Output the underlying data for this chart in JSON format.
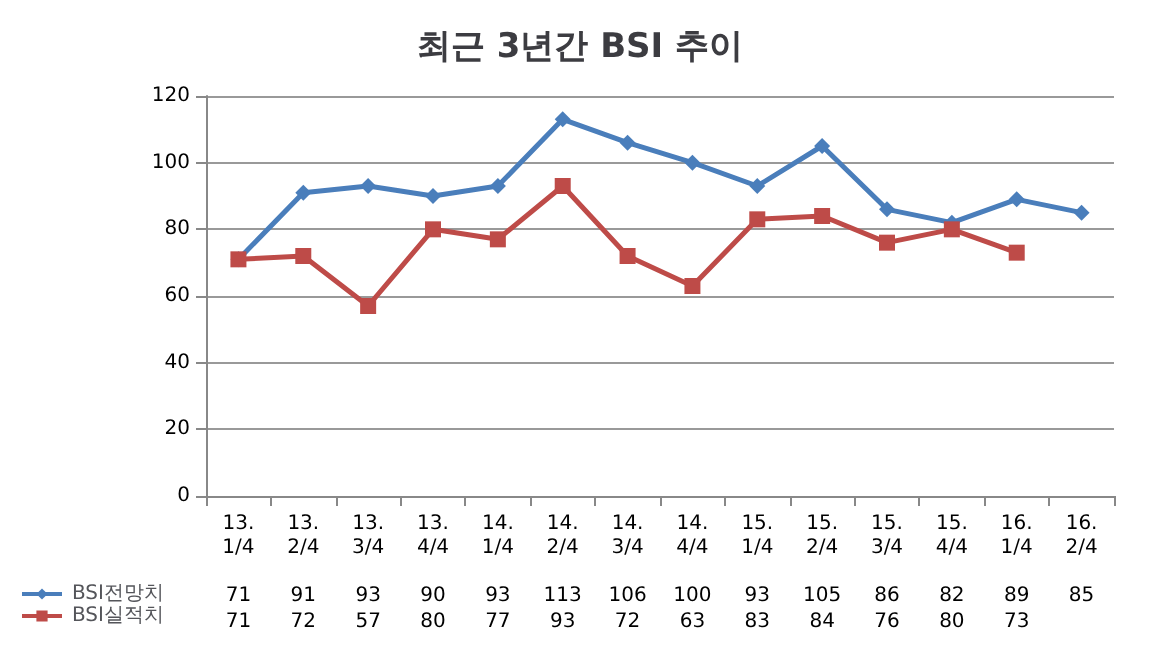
{
  "chart_data": {
    "type": "line",
    "title": "최근 3년간 BSI 추이",
    "categories": [
      "13.\n1/4",
      "13.\n2/4",
      "13.\n3/4",
      "13.\n4/4",
      "14.\n1/4",
      "14.\n2/4",
      "14.\n3/4",
      "14.\n4/4",
      "15.\n1/4",
      "15.\n2/4",
      "15.\n3/4",
      "15.\n4/4",
      "16.\n1/4",
      "16.\n2/4"
    ],
    "series": [
      {
        "name": "BSI전망치",
        "color": "#4a7ebb",
        "marker": "diamond",
        "values": [
          71,
          91,
          93,
          90,
          93,
          113,
          106,
          100,
          93,
          105,
          86,
          82,
          89,
          85
        ]
      },
      {
        "name": "BSI실적치",
        "color": "#be4b48",
        "marker": "square",
        "values": [
          71,
          72,
          57,
          80,
          77,
          93,
          72,
          63,
          83,
          84,
          76,
          80,
          73,
          null
        ]
      }
    ],
    "ylim": [
      0,
      120
    ],
    "yticks": [
      0,
      20,
      40,
      60,
      80,
      100,
      120
    ],
    "grid": "y",
    "legend": "bottom left",
    "data_labels": true
  }
}
